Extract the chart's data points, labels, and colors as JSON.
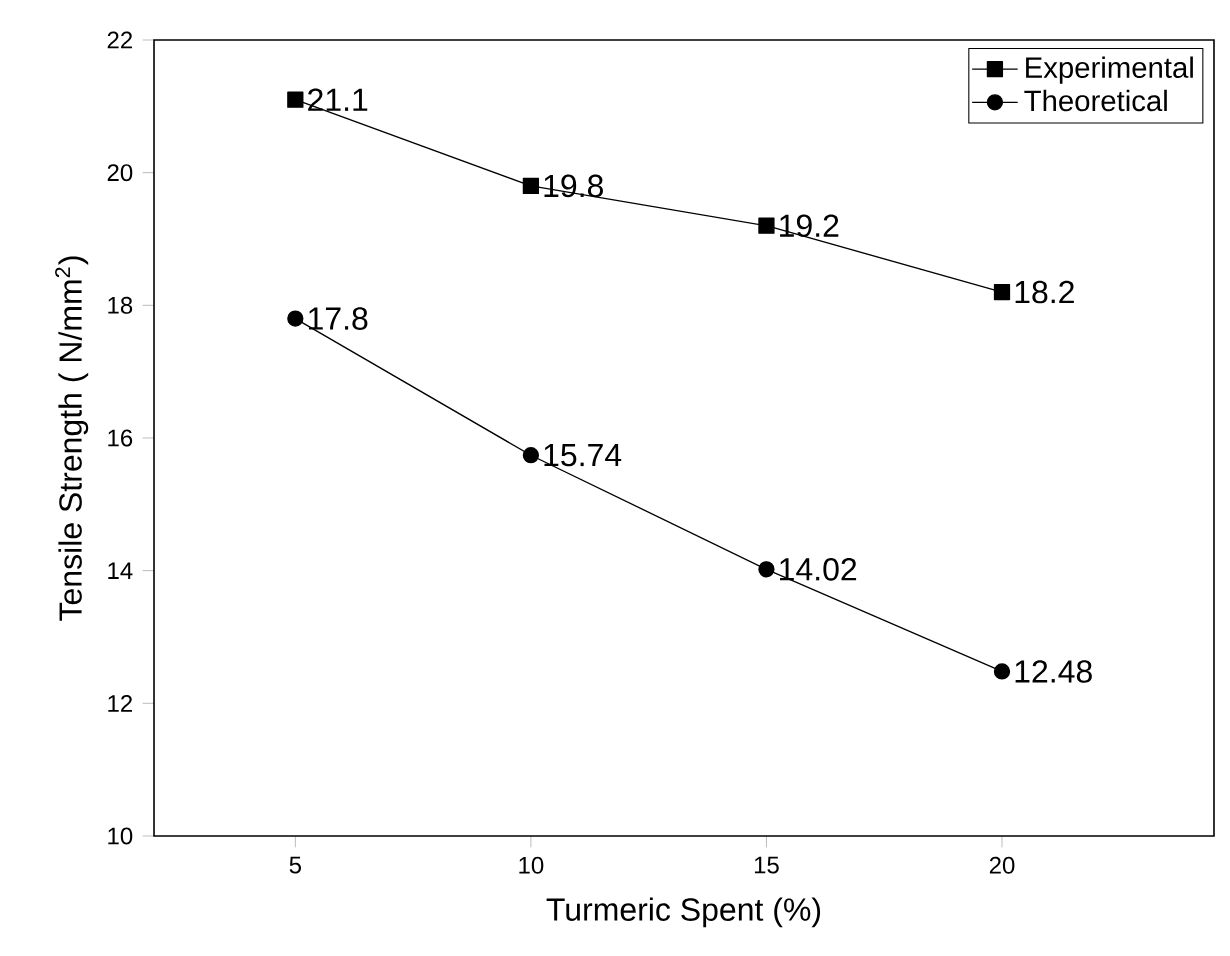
{
  "chart_data": {
    "type": "line",
    "xlabel": "Turmeric Spent (%)",
    "ylabel": "Tensile Strength ( N/mm$^{2}$)",
    "x": [
      5,
      10,
      15,
      20
    ],
    "series": [
      {
        "name": "Experimental",
        "color": "#000000",
        "marker": "square",
        "values": [
          21.1,
          19.8,
          19.2,
          18.2
        ]
      },
      {
        "name": "Theoretical",
        "color": "#000000",
        "marker": "circle",
        "values": [
          17.8,
          15.74,
          14.02,
          12.48
        ]
      }
    ],
    "xlim": [
      2,
      24.5
    ],
    "ylim": [
      10,
      22
    ],
    "xticks": [
      5,
      10,
      15,
      20
    ],
    "yticks": [
      10,
      12,
      14,
      16,
      18,
      20,
      22
    ],
    "data_labels": true,
    "legend": "top right",
    "grid": false,
    "line_style": "solid"
  }
}
